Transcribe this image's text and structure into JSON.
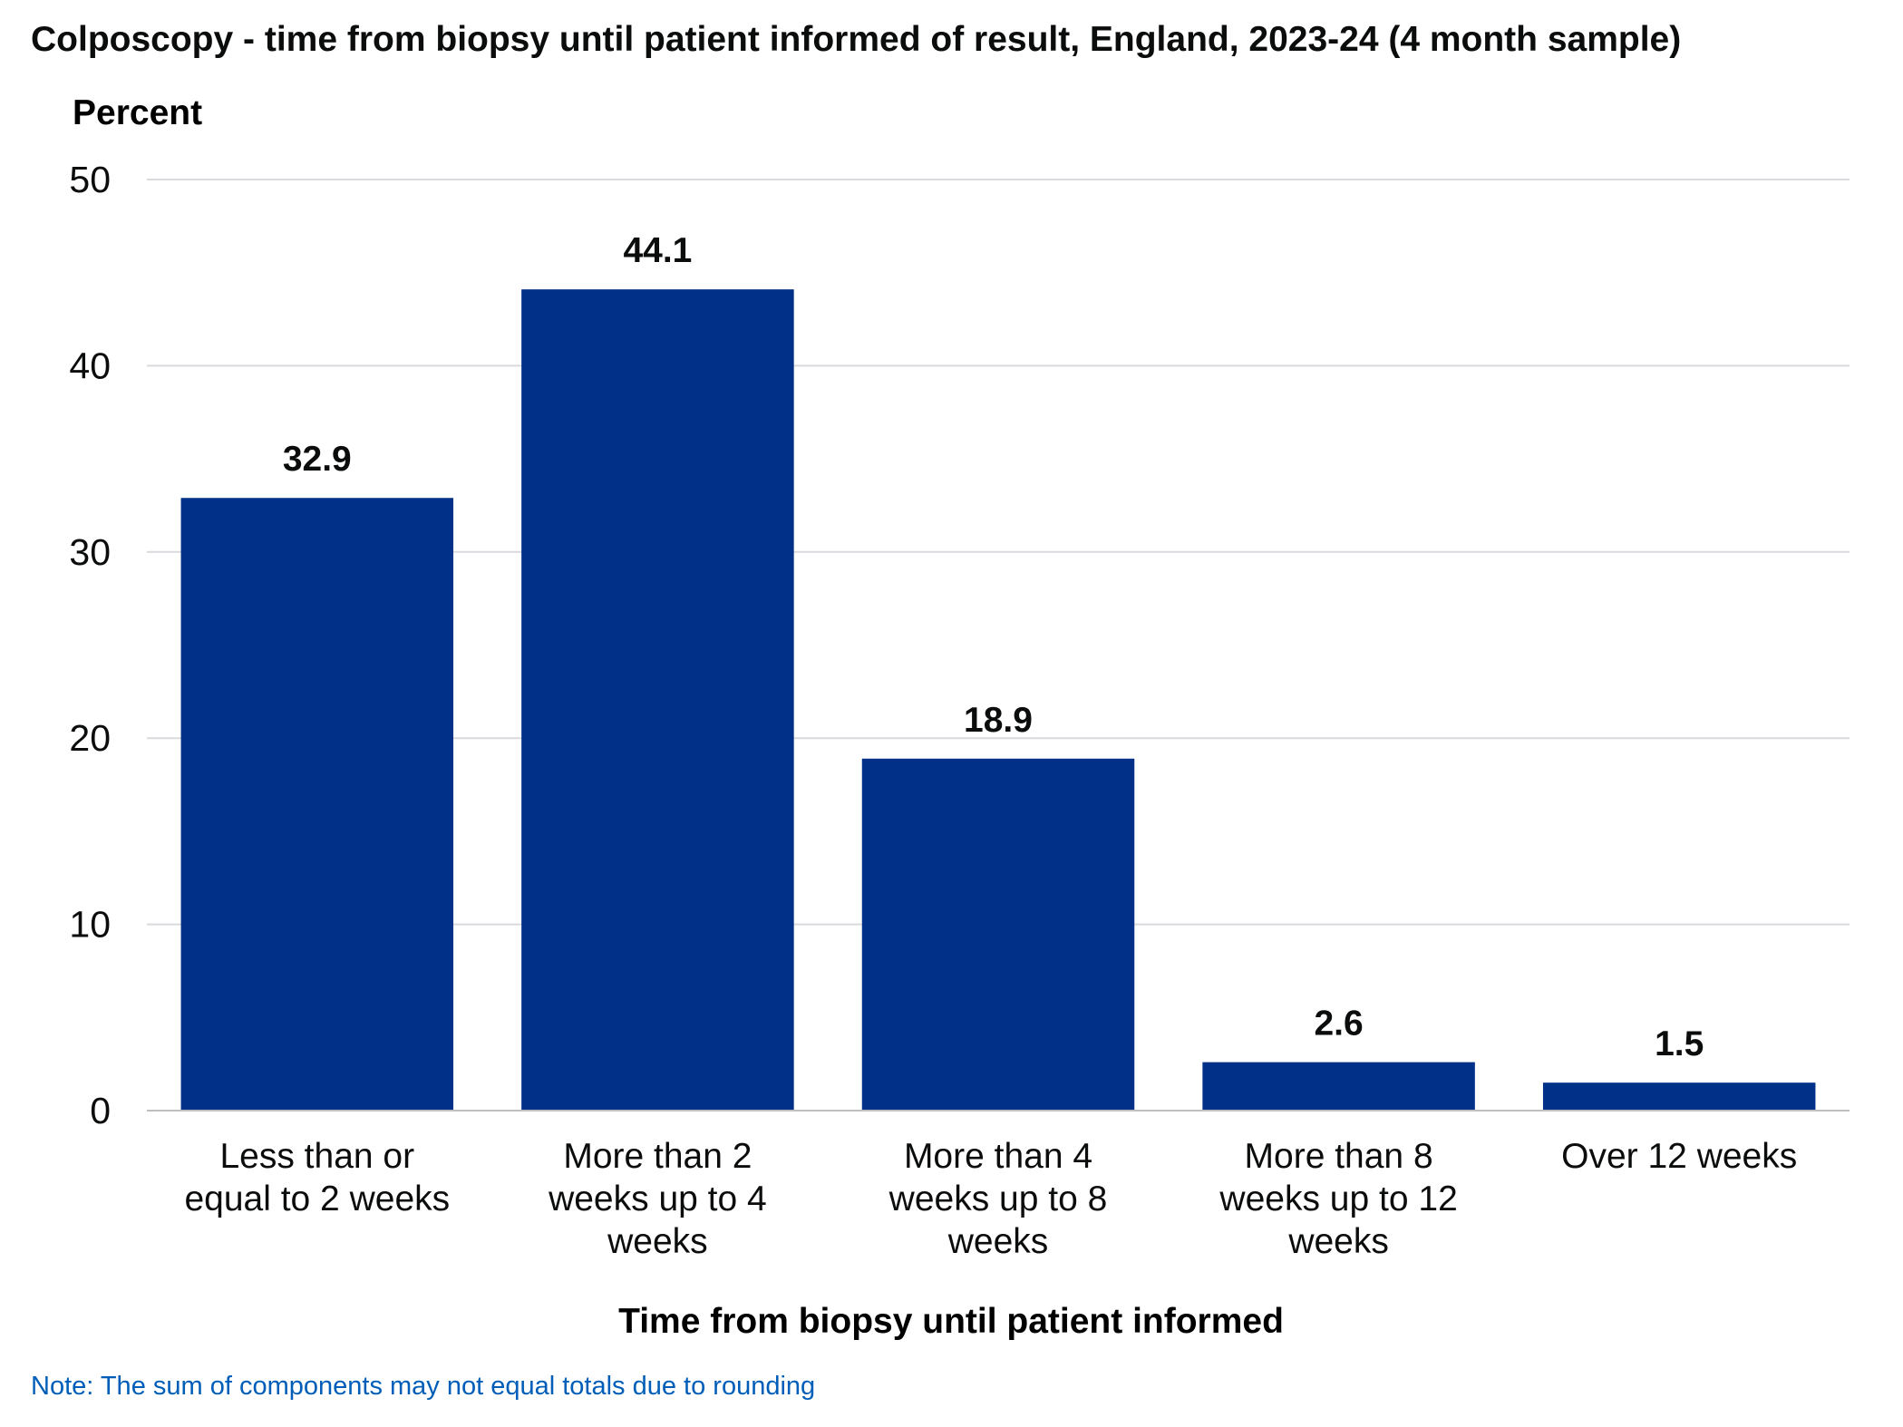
{
  "colors": {
    "bar": "#003087",
    "grid": "#d9d9de",
    "axis": "#bfbfbf",
    "text": "#0b0c0c",
    "note": "#005eb8"
  },
  "note": "Note: The sum of components may not equal totals due to rounding",
  "chart_data": {
    "type": "bar",
    "title": "Colposcopy - time from biopsy until patient informed of result, England, 2023-24 (4 month sample)",
    "xlabel": "Time from biopsy until patient informed",
    "ylabel": "Percent",
    "ylim": [
      0,
      50
    ],
    "yticks": [
      0,
      10,
      20,
      30,
      40,
      50
    ],
    "grid": true,
    "categories": [
      [
        "Less than or",
        "equal to 2 weeks"
      ],
      [
        "More than 2",
        "weeks up to 4",
        "weeks"
      ],
      [
        "More than 4",
        "weeks up to 8",
        "weeks"
      ],
      [
        "More than 8",
        "weeks up to 12",
        "weeks"
      ],
      [
        "Over 12 weeks"
      ]
    ],
    "values": [
      32.9,
      44.1,
      18.9,
      2.6,
      1.5
    ],
    "data_labels": [
      "32.9",
      "44.1",
      "18.9",
      "2.6",
      "1.5"
    ]
  }
}
